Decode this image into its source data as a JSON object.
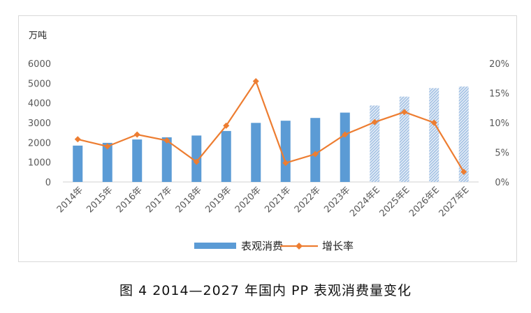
{
  "chart_data": {
    "type": "bar+line",
    "categories": [
      "2014年",
      "2015年",
      "2016年",
      "2017年",
      "2018年",
      "2019年",
      "2020年",
      "2021年",
      "2022年",
      "2023年",
      "2024年E",
      "2025年E",
      "2026年E",
      "2027年E"
    ],
    "forecast_from_index": 10,
    "series": [
      {
        "name": "表观消费",
        "type": "bar",
        "axis": "left",
        "color": "#5b9bd5",
        "values": [
          1840,
          1980,
          2150,
          2260,
          2350,
          2580,
          2990,
          3100,
          3240,
          3510,
          3870,
          4320,
          4750,
          4830
        ]
      },
      {
        "name": "增长率",
        "type": "line",
        "axis": "right",
        "color": "#ed7d31",
        "values": [
          7.2,
          6.0,
          8.0,
          7.0,
          3.4,
          9.5,
          17.0,
          3.2,
          4.7,
          8.0,
          10.1,
          11.8,
          10.0,
          1.7
        ]
      }
    ],
    "y_left": {
      "unit": "万吨",
      "min": 0,
      "max": 6000,
      "ticks": [
        0,
        1000,
        2000,
        3000,
        4000,
        5000,
        6000
      ]
    },
    "y_right": {
      "min": 0,
      "max": 20,
      "ticks": [
        0,
        5,
        10,
        15,
        20
      ],
      "tick_labels": [
        "0%",
        "5%",
        "10%",
        "15%",
        "20%"
      ]
    },
    "legend_position": "bottom",
    "grid": false
  },
  "caption": "图 4  2014—2027 年国内 PP 表观消费量变化"
}
